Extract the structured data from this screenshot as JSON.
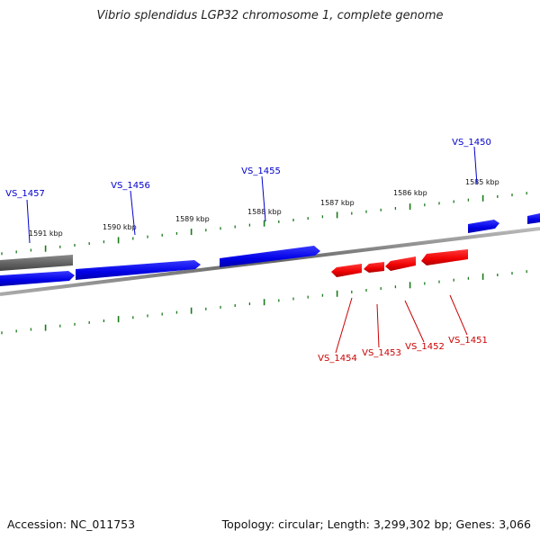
{
  "title": "Vibrio splendidus LGP32 chromosome 1, complete genome",
  "footer": {
    "accession": "Accession: NC_011753",
    "summary": "Topology: circular; Length: 3,299,302 bp; Genes: 3,066"
  },
  "colors": {
    "forward_strand": "#0000ee",
    "reverse_strand": "#ee0000",
    "other_feature": "#666666",
    "backbone": "#888888",
    "ticks": "#1a7a1a"
  },
  "scale": {
    "unit": "kbp",
    "labels": [
      "1591 kbp",
      "1590 kbp",
      "1589 kbp",
      "1588 kbp",
      "1587 kbp",
      "1586 kbp",
      "1585 kbp"
    ]
  },
  "genes": {
    "forward": [
      "VS_1457",
      "VS_1456",
      "VS_1455",
      "VS_1450"
    ],
    "reverse": [
      "VS_1454",
      "VS_1453",
      "VS_1452",
      "VS_1451"
    ]
  }
}
